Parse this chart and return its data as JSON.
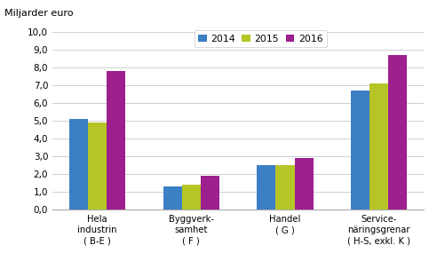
{
  "title": "Miljarder euro",
  "categories": [
    "Hela\nindustrin\n( B-E )",
    "Byggverk-\nsamhet\n( F )",
    "Handel\n( G )",
    "Service-\nnäringsgrenar\n( H-S, exkl. K )"
  ],
  "series": {
    "2014": [
      5.1,
      1.3,
      2.5,
      6.7
    ],
    "2015": [
      4.9,
      1.4,
      2.5,
      7.1
    ],
    "2016": [
      7.8,
      1.9,
      2.9,
      8.7
    ]
  },
  "colors": {
    "2014": "#3b7fc4",
    "2015": "#b5c526",
    "2016": "#9e1f8e"
  },
  "ylim": [
    0,
    10.0
  ],
  "yticks": [
    0.0,
    1.0,
    2.0,
    3.0,
    4.0,
    5.0,
    6.0,
    7.0,
    8.0,
    9.0,
    10.0
  ],
  "ytick_labels": [
    "0,0",
    "1,0",
    "2,0",
    "3,0",
    "4,0",
    "5,0",
    "6,0",
    "7,0",
    "8,0",
    "9,0",
    "10,0"
  ],
  "bar_width": 0.2,
  "background_color": "#ffffff",
  "grid_color": "#d0d0d0"
}
